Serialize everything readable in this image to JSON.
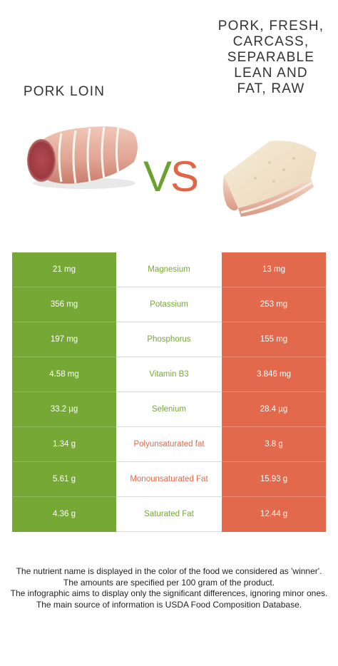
{
  "left_food": {
    "title_line1": "PORK LOIN",
    "color": "#76a836",
    "image_icon": "pork-loin-roast"
  },
  "right_food": {
    "title_lines": [
      "PORK, FRESH,",
      "CARCASS,",
      "SEPARABLE",
      "LEAN AND",
      "FAT, RAW"
    ],
    "color": "#e2694b",
    "image_icon": "pork-belly-slab"
  },
  "vs": {
    "v": "V",
    "s": "S"
  },
  "rows": [
    {
      "left": "21 mg",
      "nutrient": "Magnesium",
      "right": "13 mg",
      "winner": "left"
    },
    {
      "left": "356 mg",
      "nutrient": "Potassium",
      "right": "253 mg",
      "winner": "left"
    },
    {
      "left": "197 mg",
      "nutrient": "Phosphorus",
      "right": "155 mg",
      "winner": "left"
    },
    {
      "left": "4.58 mg",
      "nutrient": "Vitamin B3",
      "right": "3.846 mg",
      "winner": "left"
    },
    {
      "left": "33.2 µg",
      "nutrient": "Selenium",
      "right": "28.4 µg",
      "winner": "left"
    },
    {
      "left": "1.34 g",
      "nutrient": "Polyunsaturated fat",
      "right": "3.8 g",
      "winner": "right"
    },
    {
      "left": "5.61 g",
      "nutrient": "Monounsaturated Fat",
      "right": "15.93 g",
      "winner": "right"
    },
    {
      "left": "4.36 g",
      "nutrient": "Saturated Fat",
      "right": "12.44 g",
      "winner": "left"
    }
  ],
  "footer": [
    "The nutrient name is displayed in the color of the food we considered as 'winner'.",
    "The amounts are specified per 100 gram of the product.",
    "The infographic aims to display only the significant differences, ignoring minor ones.",
    "The main source of information is USDA Food Composition Database."
  ]
}
